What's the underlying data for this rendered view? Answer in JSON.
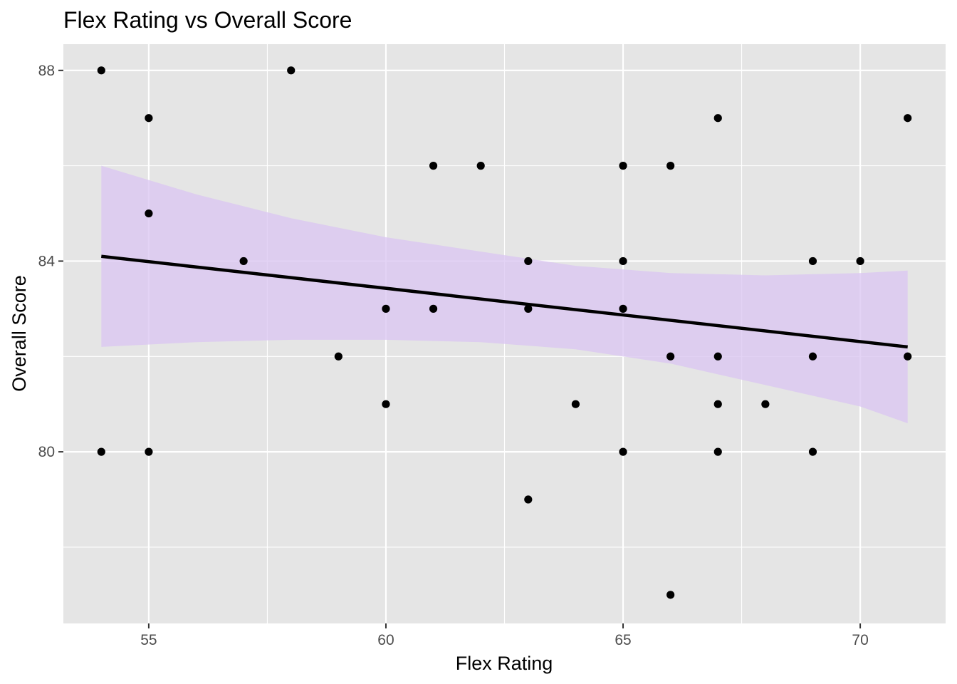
{
  "chart_data": {
    "type": "scatter",
    "title": "Flex Rating vs Overall Score",
    "xlabel": "Flex Rating",
    "ylabel": "Overall Score",
    "xlim": [
      53.2,
      71.8
    ],
    "ylim": [
      76.4,
      88.55
    ],
    "x_ticks": [
      {
        "value": 55,
        "label": "55"
      },
      {
        "value": 60,
        "label": "60"
      },
      {
        "value": 65,
        "label": "65"
      },
      {
        "value": 70,
        "label": "70"
      }
    ],
    "y_ticks": [
      {
        "value": 80,
        "label": "80"
      },
      {
        "value": 84,
        "label": "84"
      },
      {
        "value": 88,
        "label": "88"
      }
    ],
    "x_minor": [
      57.5,
      62.5,
      67.5
    ],
    "y_minor": [
      78,
      82,
      86
    ],
    "grid": true,
    "legend": "none",
    "colors": {
      "panel": "#e5e5e5",
      "grid": "#ffffff",
      "points": "#000000",
      "trend_line": "#000000",
      "ribbon": "#d9c4f2"
    },
    "series": [
      {
        "points": [
          {
            "x": 54,
            "y": 88
          },
          {
            "x": 54,
            "y": 80
          },
          {
            "x": 55,
            "y": 87
          },
          {
            "x": 55,
            "y": 85
          },
          {
            "x": 55,
            "y": 80
          },
          {
            "x": 57,
            "y": 84
          },
          {
            "x": 58,
            "y": 88
          },
          {
            "x": 59,
            "y": 82
          },
          {
            "x": 60,
            "y": 83
          },
          {
            "x": 60,
            "y": 81
          },
          {
            "x": 61,
            "y": 86
          },
          {
            "x": 61,
            "y": 83
          },
          {
            "x": 62,
            "y": 86
          },
          {
            "x": 63,
            "y": 84
          },
          {
            "x": 63,
            "y": 83
          },
          {
            "x": 63,
            "y": 79
          },
          {
            "x": 64,
            "y": 81
          },
          {
            "x": 65,
            "y": 86
          },
          {
            "x": 65,
            "y": 84
          },
          {
            "x": 65,
            "y": 83
          },
          {
            "x": 65,
            "y": 80
          },
          {
            "x": 66,
            "y": 86
          },
          {
            "x": 66,
            "y": 82
          },
          {
            "x": 66,
            "y": 77
          },
          {
            "x": 67,
            "y": 87
          },
          {
            "x": 67,
            "y": 82
          },
          {
            "x": 67,
            "y": 81
          },
          {
            "x": 67,
            "y": 80
          },
          {
            "x": 68,
            "y": 81
          },
          {
            "x": 69,
            "y": 84
          },
          {
            "x": 69,
            "y": 82
          },
          {
            "x": 69,
            "y": 80
          },
          {
            "x": 70,
            "y": 84
          },
          {
            "x": 71,
            "y": 87
          },
          {
            "x": 71,
            "y": 82
          }
        ]
      }
    ],
    "trend_line": {
      "x": [
        54,
        71
      ],
      "y": [
        84.1,
        82.2
      ]
    },
    "confidence_band": {
      "x": [
        54,
        56,
        58,
        60,
        62,
        64,
        66,
        68,
        70,
        71
      ],
      "upper": [
        86.0,
        85.4,
        84.9,
        84.5,
        84.2,
        83.9,
        83.75,
        83.7,
        83.75,
        83.8
      ],
      "lower": [
        82.2,
        82.3,
        82.35,
        82.35,
        82.3,
        82.15,
        81.85,
        81.4,
        80.95,
        80.6
      ]
    }
  }
}
